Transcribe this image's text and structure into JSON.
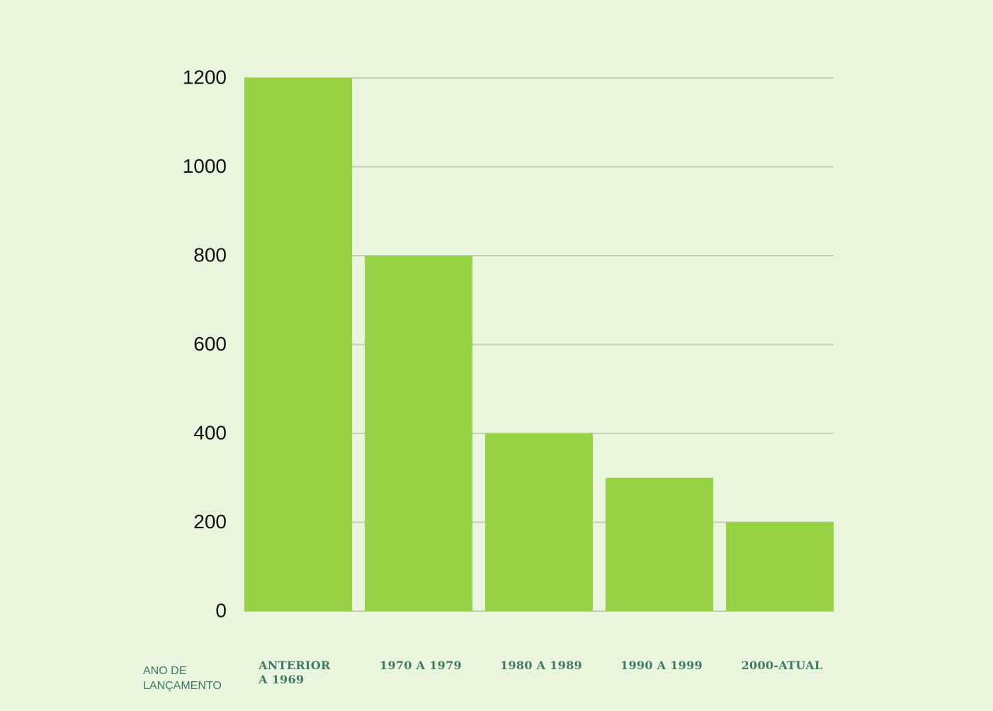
{
  "chart_data": {
    "type": "bar",
    "x_label": "ANO DE LANÇAMENTO",
    "categories": [
      "ANTERIOR A 1969",
      "1970 A 1979",
      "1980 A 1989",
      "1990 A 1999",
      "2000-ATUAL"
    ],
    "values": [
      1200,
      800,
      400,
      300,
      200
    ],
    "color": "#96d243",
    "ylim": [
      0,
      1200
    ],
    "yticks": [
      0,
      200,
      400,
      600,
      800,
      1000,
      1200
    ],
    "grid": true
  }
}
